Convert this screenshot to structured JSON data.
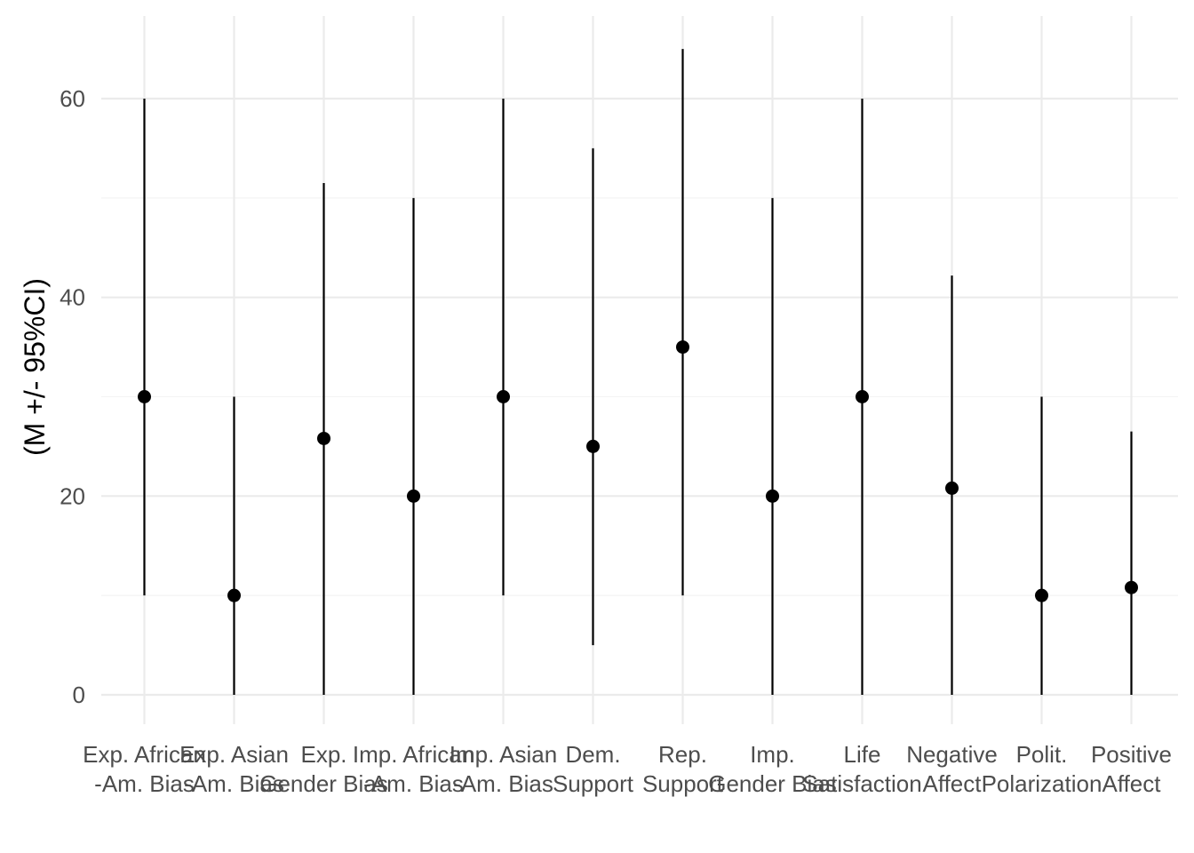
{
  "chart_data": {
    "type": "scatter",
    "title": "",
    "xlabel": "",
    "ylabel": "(M +/- 95%CI)",
    "ylim": [
      -3,
      68
    ],
    "yticks": [
      0,
      20,
      40,
      60
    ],
    "grid": true,
    "legend": "none",
    "point_color": "#000000",
    "errorbar_color": "#000000",
    "categories": [
      [
        "Exp. African",
        "-Am. Bias"
      ],
      [
        "Exp. Asian",
        "-Am. Bias"
      ],
      [
        "Exp.",
        "Gender Bias"
      ],
      [
        "Imp. African",
        "-Am. Bias"
      ],
      [
        "Imp. Asian",
        "-Am. Bias"
      ],
      [
        "Dem.",
        "Support"
      ],
      [
        "Rep.",
        "Support"
      ],
      [
        "Imp.",
        "Gender Bias"
      ],
      [
        "Life",
        "Satisfaction"
      ],
      [
        "Negative",
        "Affect"
      ],
      [
        "Polit.",
        "Polarization"
      ],
      [
        "Positive",
        "Affect"
      ]
    ],
    "mean": [
      30,
      10,
      25.8,
      20,
      30,
      25,
      35,
      20,
      30,
      20.8,
      10,
      10.8
    ],
    "lower": [
      10,
      0,
      0,
      0,
      10,
      5,
      10,
      0,
      0,
      0,
      0,
      0
    ],
    "upper": [
      60,
      30,
      51.5,
      50,
      60,
      55,
      65,
      50,
      60,
      42.2,
      30,
      26.5
    ]
  }
}
